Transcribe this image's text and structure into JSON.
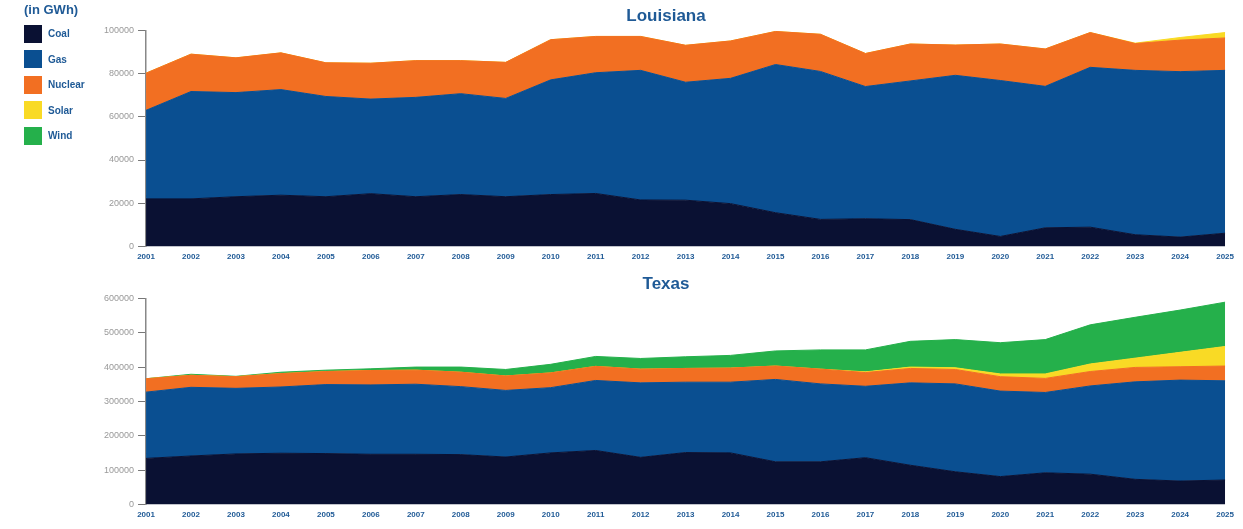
{
  "chart_data": [
    {
      "type": "area",
      "title": "Louisiana",
      "annotations": [
        "(in GWh)"
      ],
      "stacked": true,
      "legend": "left",
      "ylim": [
        0,
        100000
      ],
      "yticks": [
        0,
        20000,
        40000,
        60000,
        80000,
        100000
      ],
      "categories": [
        "2001",
        "2002",
        "2003",
        "2004",
        "2005",
        "2006",
        "2007",
        "2008",
        "2009",
        "2010",
        "2011",
        "2012",
        "2013",
        "2014",
        "2015",
        "2016",
        "2017",
        "2018",
        "2019",
        "2020",
        "2021",
        "2022",
        "2023",
        "2024",
        "2025"
      ],
      "series": [
        {
          "name": "Coal",
          "color": "#0a1133",
          "values": [
            22000,
            22000,
            23000,
            23700,
            23000,
            24400,
            23000,
            24000,
            23000,
            24000,
            24500,
            21500,
            21400,
            19800,
            15600,
            12500,
            12800,
            12400,
            7900,
            4600,
            8600,
            8900,
            5400,
            4300,
            6100
          ]
        },
        {
          "name": "Gas",
          "color": "#0a4f91",
          "values": [
            41000,
            49700,
            48200,
            48900,
            46400,
            43800,
            46000,
            46700,
            45500,
            53100,
            55900,
            60000,
            54600,
            58000,
            68600,
            68500,
            61200,
            64200,
            71300,
            72200,
            65500,
            74000,
            76100,
            76600,
            75400
          ]
        },
        {
          "name": "Nuclear",
          "color": "#f26f22",
          "values": [
            17200,
            17300,
            16100,
            17000,
            15600,
            16600,
            17000,
            15300,
            16700,
            18600,
            16800,
            15700,
            17100,
            17300,
            15300,
            17200,
            15300,
            17100,
            14000,
            16900,
            17300,
            16100,
            12400,
            14600,
            15000
          ]
        },
        {
          "name": "Solar",
          "color": "#f9da25",
          "values": [
            0,
            0,
            0,
            0,
            0,
            0,
            0,
            0,
            0,
            0,
            0,
            0,
            0,
            0,
            0,
            0,
            0,
            0,
            0,
            0,
            0,
            0,
            200,
            1200,
            2500
          ]
        }
      ]
    },
    {
      "type": "area",
      "title": "Texas",
      "stacked": true,
      "legend": "left",
      "ylim": [
        0,
        600000
      ],
      "yticks": [
        0,
        100000,
        200000,
        300000,
        400000,
        500000,
        600000
      ],
      "categories": [
        "2001",
        "2002",
        "2003",
        "2004",
        "2005",
        "2006",
        "2007",
        "2008",
        "2009",
        "2010",
        "2011",
        "2012",
        "2013",
        "2014",
        "2015",
        "2016",
        "2017",
        "2018",
        "2019",
        "2020",
        "2021",
        "2022",
        "2023",
        "2024",
        "2025"
      ],
      "series": [
        {
          "name": "Coal",
          "color": "#0a1133",
          "values": [
            134000,
            141000,
            147000,
            149000,
            148000,
            146000,
            146000,
            145000,
            138000,
            150000,
            157000,
            137000,
            151000,
            150000,
            124000,
            124000,
            136000,
            114000,
            95000,
            81000,
            92000,
            88000,
            73000,
            68000,
            71000
          ]
        },
        {
          "name": "Gas",
          "color": "#0a4f91",
          "values": [
            193000,
            200000,
            191000,
            193000,
            201000,
            202000,
            204000,
            198000,
            194000,
            190000,
            204000,
            217000,
            205000,
            206000,
            240000,
            227000,
            208000,
            240000,
            256000,
            249000,
            234000,
            257000,
            284000,
            294000,
            289000
          ]
        },
        {
          "name": "Nuclear",
          "color": "#f26f22",
          "values": [
            39000,
            35000,
            34000,
            39000,
            38000,
            42000,
            41000,
            42000,
            42000,
            43000,
            41000,
            40000,
            40000,
            41000,
            39000,
            43000,
            40000,
            42000,
            42000,
            42000,
            41000,
            42000,
            42000,
            39000,
            43000
          ]
        },
        {
          "name": "Solar",
          "color": "#f9da25",
          "values": [
            0,
            0,
            0,
            0,
            0,
            0,
            0,
            0,
            0,
            0,
            0,
            0,
            0,
            0,
            0,
            0,
            2000,
            4000,
            5000,
            8000,
            13000,
            22000,
            27000,
            42000,
            57000
          ]
        },
        {
          "name": "Wind",
          "color": "#25b04b",
          "values": [
            0,
            3000,
            1000,
            4000,
            4000,
            5000,
            9000,
            15000,
            19000,
            25000,
            29000,
            31000,
            34000,
            37000,
            44000,
            56000,
            64000,
            75000,
            82000,
            91000,
            100000,
            114000,
            119000,
            123000,
            129000
          ]
        }
      ]
    }
  ]
}
